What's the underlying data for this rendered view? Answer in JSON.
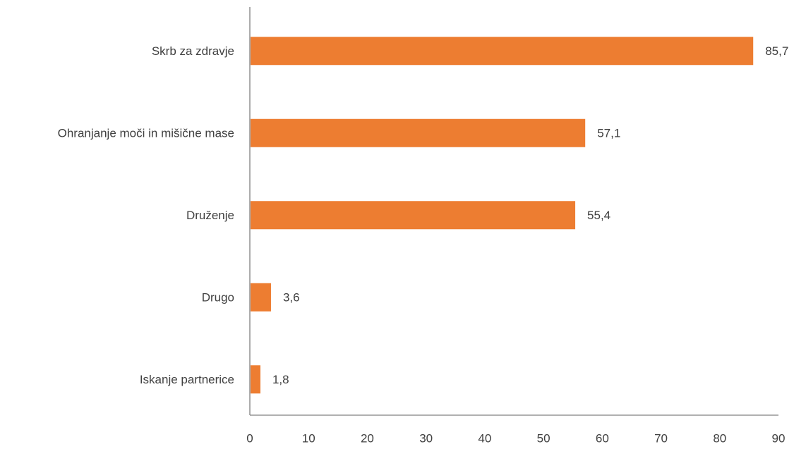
{
  "chart_data": {
    "type": "bar",
    "orientation": "horizontal",
    "categories": [
      "Skrb za zdravje",
      "Ohranjanje moči in mišične mase",
      "Druženje",
      "Drugo",
      "Iskanje partnerice"
    ],
    "values": [
      85.7,
      57.1,
      55.4,
      3.6,
      1.8
    ],
    "value_labels": [
      "85,7",
      "57,1",
      "55,4",
      "3,6",
      "1,8"
    ],
    "x_ticks": [
      "0",
      "10",
      "20",
      "30",
      "40",
      "50",
      "60",
      "70",
      "80",
      "90"
    ],
    "xlim": [
      0,
      90
    ],
    "grid": false,
    "legend": "none",
    "title": "",
    "xlabel": "",
    "ylabel": "",
    "bar_color": "#ED7D31"
  }
}
